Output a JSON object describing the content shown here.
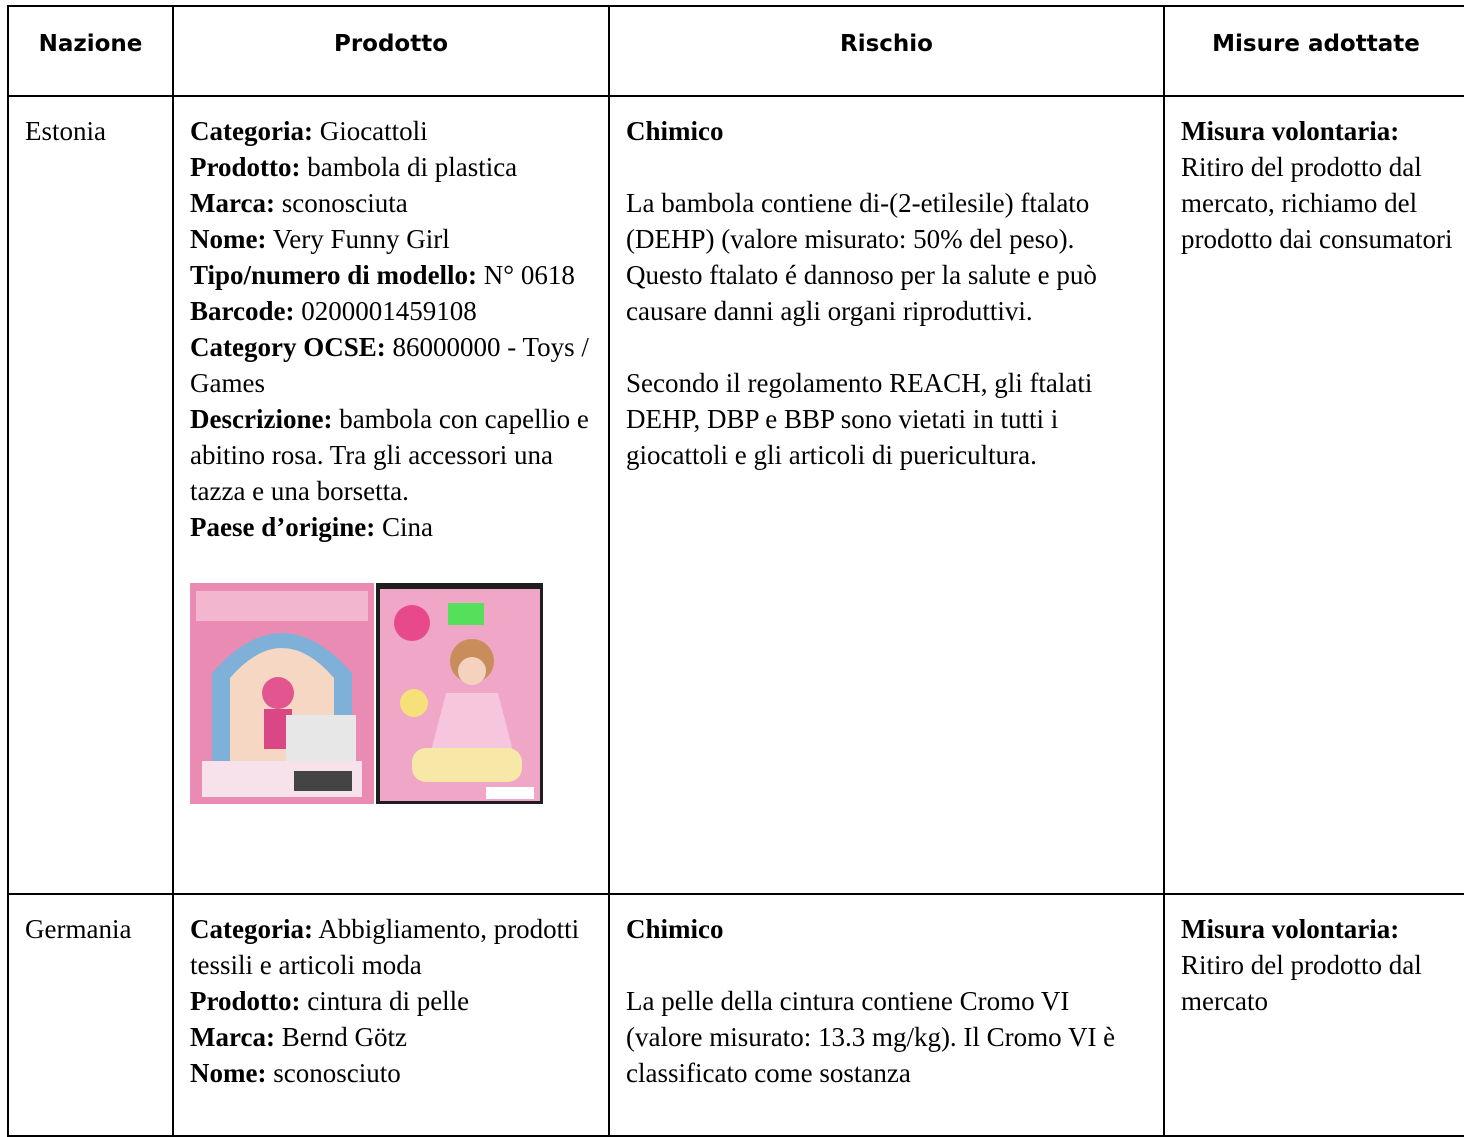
{
  "header": {
    "columns": [
      "Nazione",
      "Prodotto",
      "Rischio",
      "Misure adottate"
    ]
  },
  "rows": [
    {
      "country": "Estonia",
      "product": [
        {
          "label": "Categoria:",
          "value": "Giocattoli"
        },
        {
          "label": "Prodotto:",
          "value": "bambola di plastica"
        },
        {
          "label": "Marca:",
          "value": "sconosciuta"
        },
        {
          "label": "Nome:",
          "value": "Very Funny Girl"
        },
        {
          "label": "Tipo/numero di modello:",
          "value": "N° 0618"
        },
        {
          "label": "Barcode:",
          "value": "0200001459108"
        },
        {
          "label": "Category OCSE:",
          "value": "86000000 - Toys / Games"
        },
        {
          "label": "Descrizione:",
          "value": "bambola con capellio e abitino rosa. Tra gli accessori una tazza e una borsetta."
        },
        {
          "label": "Paese d’origine:",
          "value": "Cina"
        }
      ],
      "risk": {
        "heading": "Chimico",
        "paragraphs": [
          "La bambola contiene di-(2-etilesile) ftalato (DEHP) (valore misurato: 50% del peso). Questo ftalato é dannoso per la salute e può causare danni agli organi riproduttivi.",
          "Secondo il regolamento REACH, gli ftalati DEHP, DBP e BBP sono vietati in tutti i giocattoli e gli articoli di puericultura."
        ]
      },
      "measures": {
        "label": "Misura volontaria:",
        "text": "Ritiro del prodotto dal mercato, richiamo del prodotto dai consumatori"
      }
    },
    {
      "country": "Germania",
      "product": [
        {
          "label": "Categoria:",
          "value": "Abbigliamento, prodotti tessili e articoli moda"
        },
        {
          "label": "Prodotto:",
          "value": "cintura di pelle"
        },
        {
          "label": "Marca:",
          "value": "Bernd Götz"
        },
        {
          "label": "Nome:",
          "value": "sconosciuto"
        }
      ],
      "risk": {
        "heading": "Chimico",
        "paragraphs": [
          "La pelle della cintura contiene Cromo VI (valore misurato: 13.3 mg/kg). Il Cromo VI è classificato come sostanza"
        ]
      },
      "measures": {
        "label": "Misura volontaria:",
        "text": "Ritiro del prodotto dal mercato"
      }
    }
  ]
}
